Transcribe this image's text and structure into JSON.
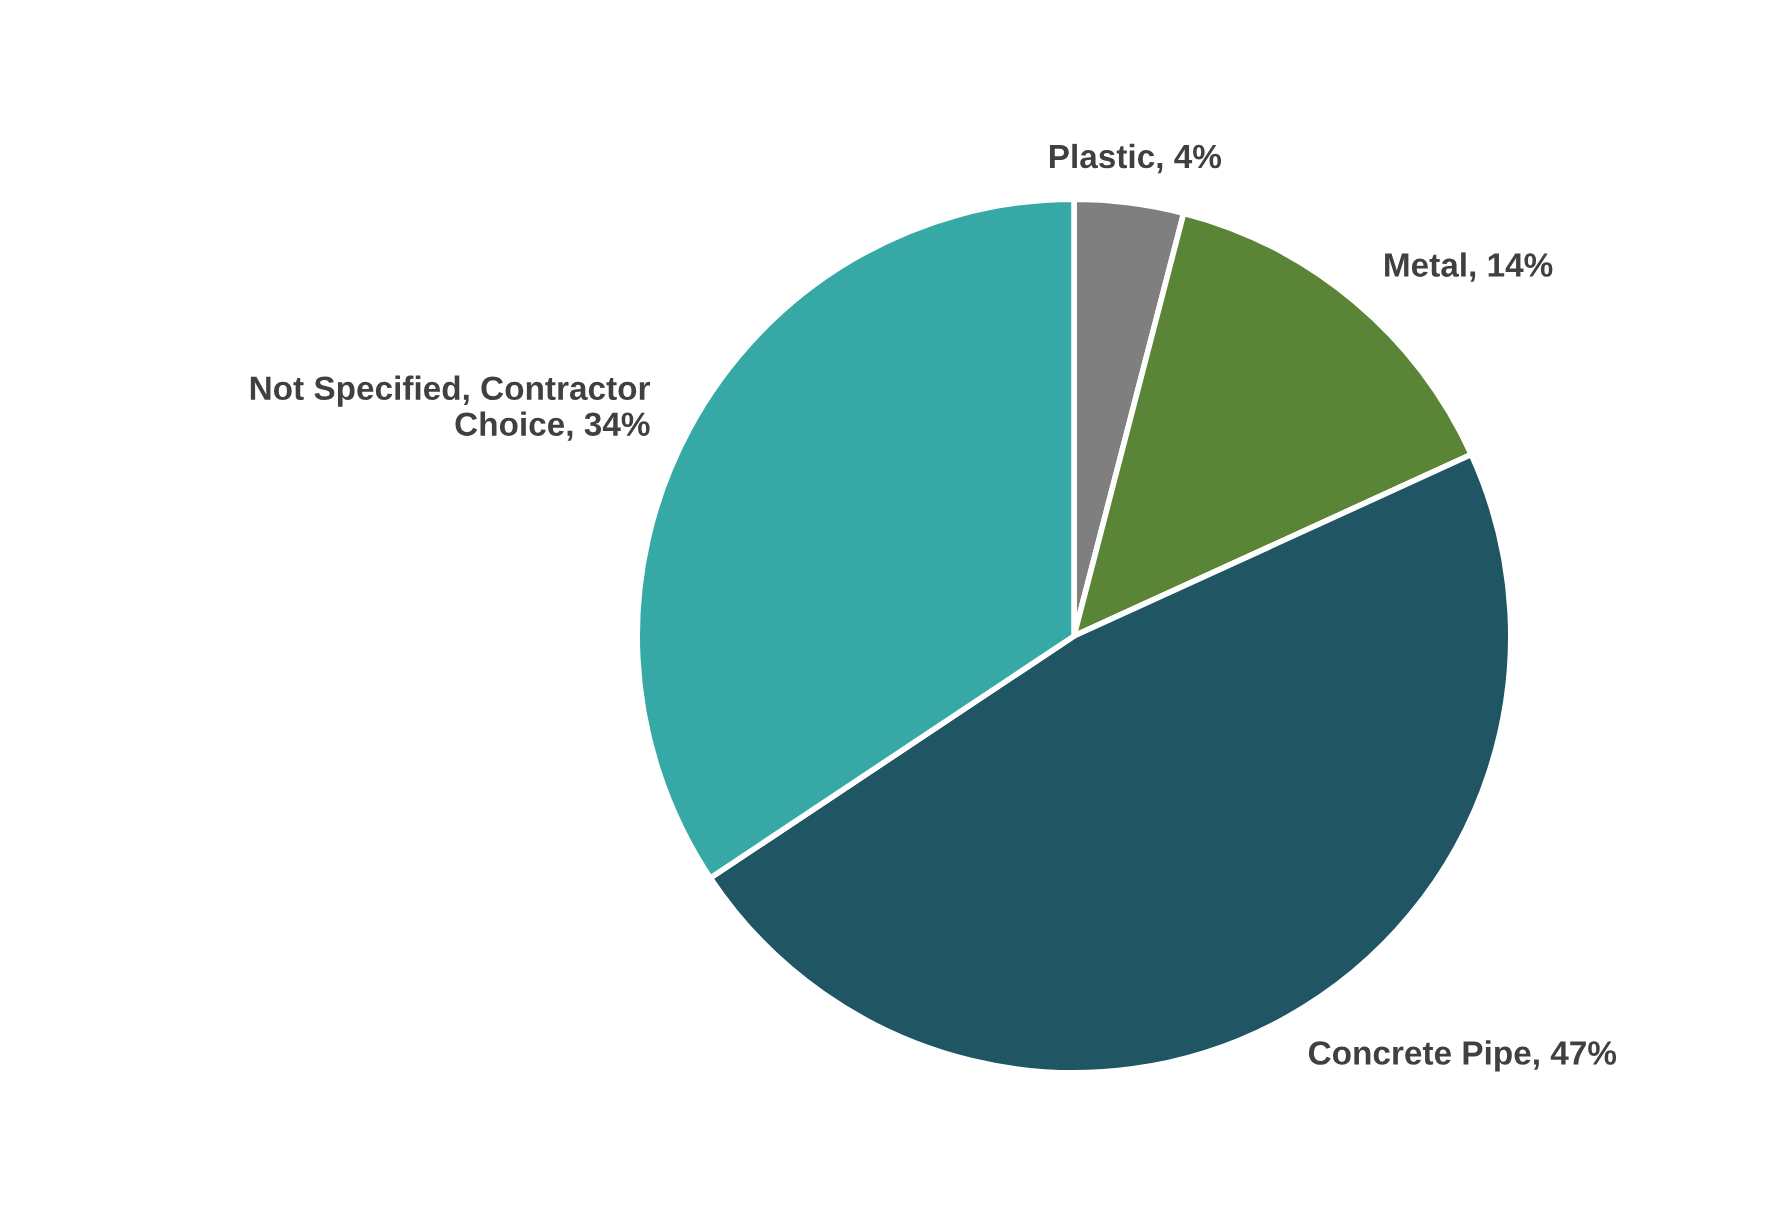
{
  "chart_data": {
    "type": "pie",
    "categories": [
      "Plastic",
      "Metal",
      "Concrete Pipe",
      "Not Specified, Contractor Choice"
    ],
    "values": [
      4,
      14,
      47,
      34
    ],
    "value_labels": [
      "4%",
      "14%",
      "47%",
      "34%"
    ],
    "colors": [
      "#7f7f7f",
      "#5a8537",
      "#205564",
      "#36a9a6"
    ],
    "legend": false
  }
}
